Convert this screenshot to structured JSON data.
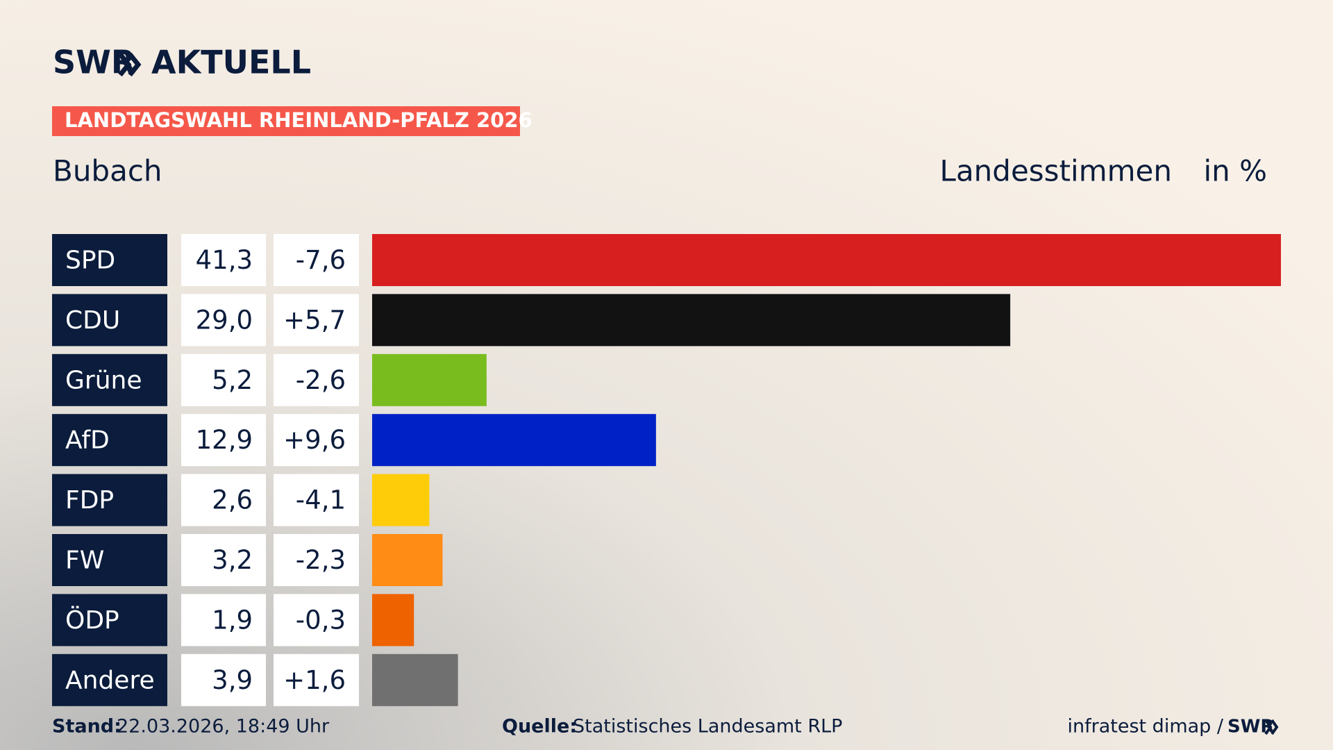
{
  "chart_data": {
    "type": "bar",
    "logo": "SWR",
    "logo_title": "AKTUELL",
    "banner": "LANDTAGSWAHL RHEINLAND-PFALZ 2026",
    "title": "Bubach",
    "subtitle": "Landesstimmen",
    "unit_label": "in %",
    "categories": [
      "SPD",
      "CDU",
      "Grüne",
      "AfD",
      "FDP",
      "FW",
      "ÖDP",
      "Andere"
    ],
    "values": [
      41.3,
      29.0,
      5.2,
      12.9,
      2.6,
      3.2,
      1.9,
      3.9
    ],
    "value_labels": [
      "41,3",
      "29,0",
      "5,2",
      "12,9",
      "2,6",
      "3,2",
      "1,9",
      "3,9"
    ],
    "changes": [
      -7.6,
      5.7,
      -2.6,
      9.6,
      -4.1,
      -2.3,
      -0.3,
      1.6
    ],
    "change_labels": [
      "-7,6",
      "+5,7",
      "-2,6",
      "+9,6",
      "-4,1",
      "-2,3",
      "-0,3",
      "+1,6"
    ],
    "colors": [
      "#d71f1f",
      "#121212",
      "#78bc1e",
      "#0021c6",
      "#ffcc0a",
      "#ff8c14",
      "#ee6200",
      "#707070"
    ],
    "stand_label": "Stand:",
    "stand": "22.03.2026, 18:49 Uhr",
    "source_label": "Quelle:",
    "source": "Statistisches Landesamt RLP",
    "credit": "infratest dimap /",
    "credit_logo": "SWR"
  }
}
